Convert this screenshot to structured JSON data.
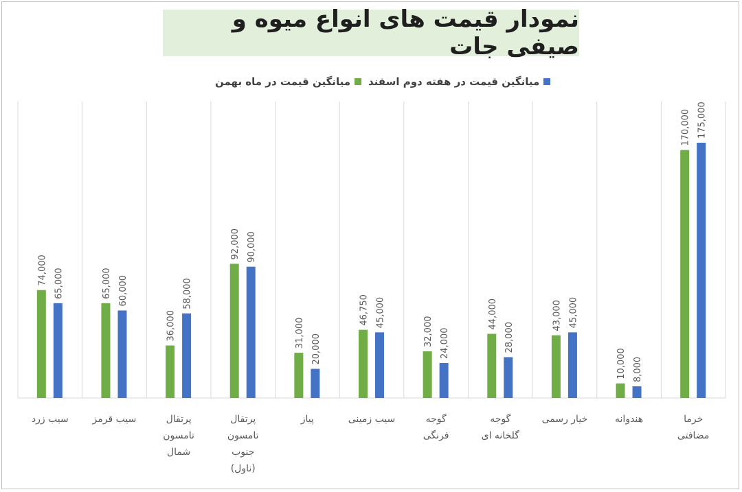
{
  "chart_data": {
    "type": "bar",
    "title": "نمودار قیمت های انواع میوه و صیفی جات",
    "categories": [
      "سیب زرد",
      "سیب قرمز",
      "پرتقال تامسون شمال",
      "پرتقال تامسون جنوب (ناول)",
      "پیاز",
      "سیب زمینی",
      "گوجه فرنگی",
      "گوجه گلخانه ای",
      "خیار رسمی",
      "هندوانه",
      "خرما مضافتی"
    ],
    "category_lines": [
      [
        "سیب زرد"
      ],
      [
        "سیب قرمز"
      ],
      [
        "پرتقال",
        "تامسون",
        "شمال"
      ],
      [
        "پرتقال",
        "تامسون",
        "جنوب",
        "(ناول)"
      ],
      [
        "پیاز"
      ],
      [
        "سیب زمینی"
      ],
      [
        "گوجه",
        "فرنگی"
      ],
      [
        "گوجه",
        "گلخانه ای"
      ],
      [
        "خیار رسمی"
      ],
      [
        "هندوانه"
      ],
      [
        "خرما",
        "مضافتی"
      ]
    ],
    "series": [
      {
        "name": "میانگین قیمت در ماه بهمن",
        "color": "#70ad47",
        "values": [
          74000,
          65000,
          36000,
          92000,
          31000,
          46750,
          32000,
          44000,
          43000,
          10000,
          170000
        ],
        "labels": [
          "74,000",
          "65,000",
          "36,000",
          "92,000",
          "31,000",
          "46,750",
          "32,000",
          "44,000",
          "43,000",
          "10,000",
          "170,000"
        ]
      },
      {
        "name": "میانگین قیمت در هفته دوم اسفند",
        "color": "#4472c4",
        "values": [
          65000,
          60000,
          58000,
          90000,
          20000,
          45000,
          24000,
          28000,
          45000,
          8000,
          175000
        ],
        "labels": [
          "65,000",
          "60,000",
          "58,000",
          "90,000",
          "20,000",
          "45,000",
          "24,000",
          "28,000",
          "45,000",
          "8,000",
          "175,000"
        ]
      }
    ],
    "ylim": [
      0,
      175000
    ],
    "legend_position": "top",
    "grid": "vertical category separators",
    "title_background": "#e2efda"
  }
}
